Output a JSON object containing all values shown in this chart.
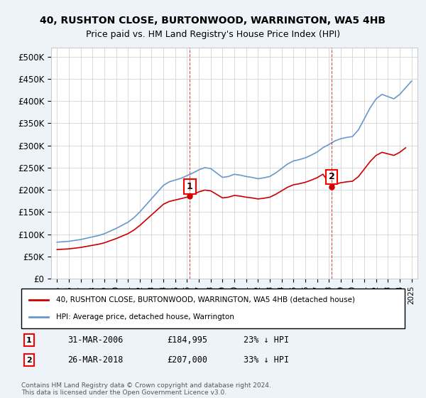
{
  "title1": "40, RUSHTON CLOSE, BURTONWOOD, WARRINGTON, WA5 4HB",
  "title2": "Price paid vs. HM Land Registry's House Price Index (HPI)",
  "ylabel": "",
  "ylim": [
    0,
    520000
  ],
  "yticks": [
    0,
    50000,
    100000,
    150000,
    200000,
    250000,
    300000,
    350000,
    400000,
    450000,
    500000
  ],
  "ytick_labels": [
    "£0",
    "£50K",
    "£100K",
    "£150K",
    "£200K",
    "£250K",
    "£300K",
    "£350K",
    "£400K",
    "£450K",
    "£500K"
  ],
  "hpi_color": "#6699cc",
  "price_color": "#cc0000",
  "purchase1_date": 2006.24,
  "purchase1_price": 184995,
  "purchase1_label": "1",
  "purchase2_date": 2018.24,
  "purchase2_price": 207000,
  "purchase2_label": "2",
  "legend_line1": "40, RUSHTON CLOSE, BURTONWOOD, WARRINGTON, WA5 4HB (detached house)",
  "legend_line2": "HPI: Average price, detached house, Warrington",
  "table_row1": [
    "1",
    "31-MAR-2006",
    "£184,995",
    "23% ↓ HPI"
  ],
  "table_row2": [
    "2",
    "26-MAR-2018",
    "£207,000",
    "33% ↓ HPI"
  ],
  "footnote": "Contains HM Land Registry data © Crown copyright and database right 2024.\nThis data is licensed under the Open Government Licence v3.0.",
  "bg_color": "#eef3fa",
  "plot_bg": "#ffffff"
}
